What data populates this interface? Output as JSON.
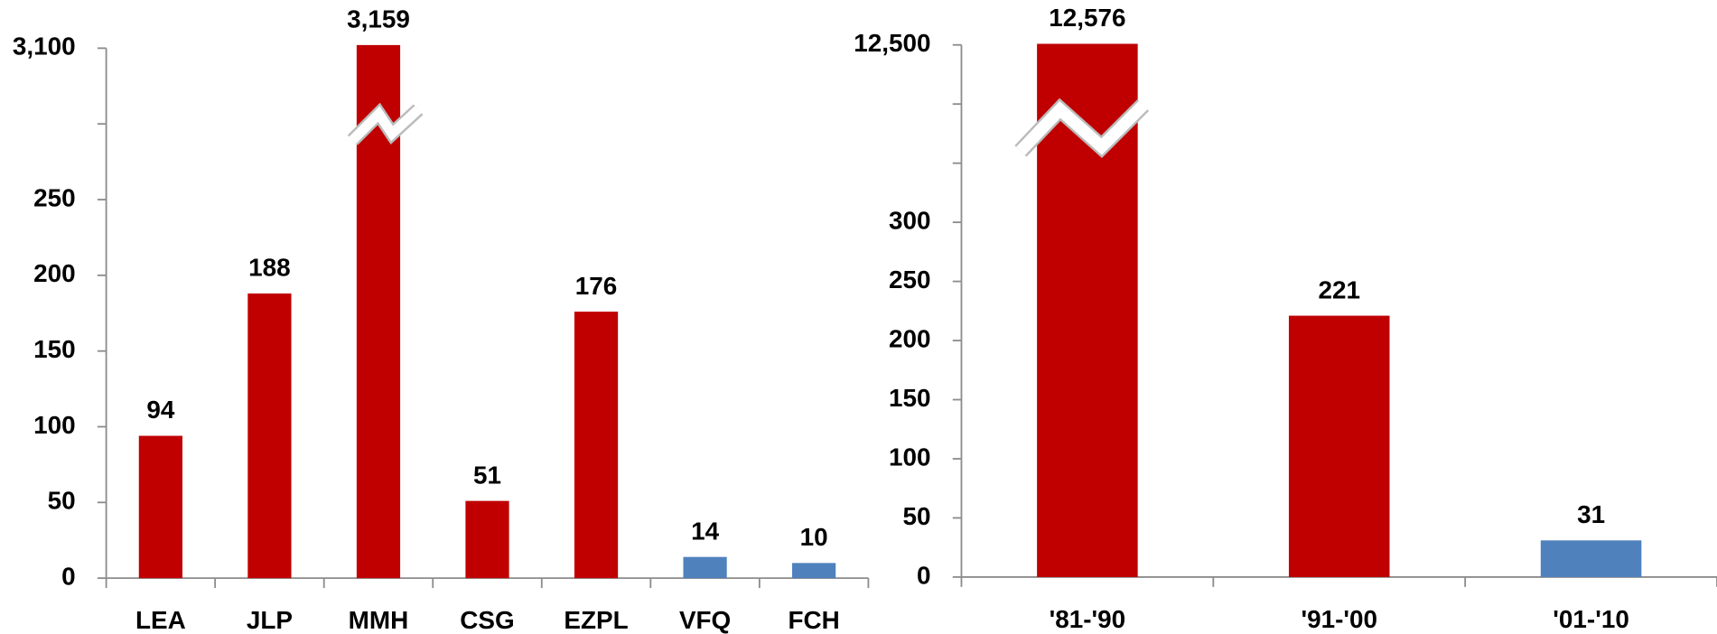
{
  "chart_data": [
    {
      "type": "bar",
      "categories": [
        "LEA",
        "JLP",
        "MMH",
        "CSG",
        "EZPL",
        "VFQ",
        "FCH"
      ],
      "values": [
        94,
        188,
        3159,
        51,
        176,
        14,
        10
      ],
      "value_labels": [
        "94",
        "188",
        "3,159",
        "51",
        "176",
        "14",
        "10"
      ],
      "colors": [
        "#c00000",
        "#c00000",
        "#c00000",
        "#c00000",
        "#c00000",
        "#4f81bd",
        "#4f81bd"
      ],
      "ylim": [
        0,
        3100
      ],
      "yticks": [
        0,
        50,
        100,
        150,
        200,
        250,
        null,
        {
          "value": 3100,
          "label": "3,100"
        }
      ]
    },
    {
      "type": "bar",
      "categories": [
        "'81-'90",
        "'91-'00",
        "'01-'10"
      ],
      "values": [
        12576,
        221,
        31
      ],
      "value_labels": [
        "12,576",
        "221",
        "31"
      ],
      "colors": [
        "#c00000",
        "#c00000",
        "#4f81bd"
      ],
      "ylim": [
        0,
        12500
      ],
      "yticks": [
        0,
        50,
        100,
        150,
        200,
        250,
        300,
        null,
        null,
        {
          "value": 12500,
          "label": "12,500"
        }
      ]
    }
  ]
}
